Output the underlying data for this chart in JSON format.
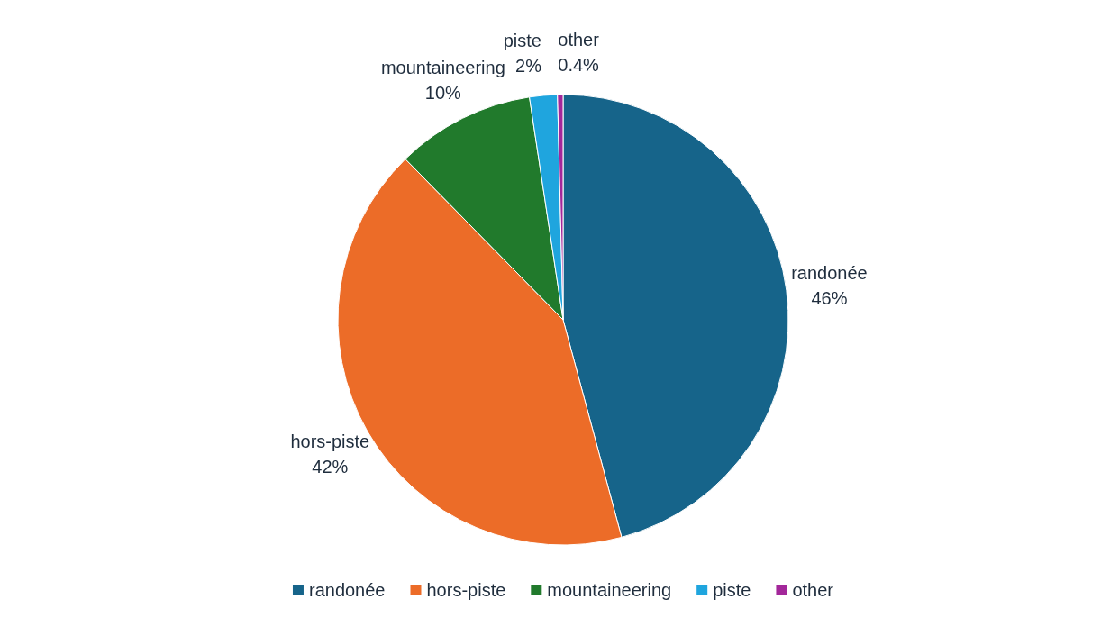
{
  "chart_data": {
    "type": "pie",
    "categories": [
      "randonée",
      "hors-piste",
      "mountaineering",
      "piste",
      "other"
    ],
    "values": [
      46,
      42,
      10,
      2,
      0.4
    ],
    "colors": [
      "#16648a",
      "#ec6c28",
      "#217a2c",
      "#1fa5de",
      "#a3279a"
    ],
    "value_labels": [
      "46%",
      "42%",
      "10%",
      "2%",
      "0.4%"
    ],
    "legend": "bottom"
  }
}
